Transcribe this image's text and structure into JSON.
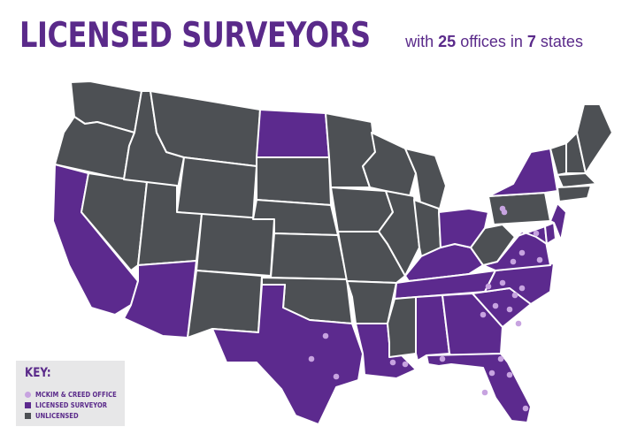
{
  "title": {
    "main": "LICENSED SURVEYORS",
    "sub_prefix": "with ",
    "office_count": "25",
    "sub_middle": " offices in ",
    "state_count": "7",
    "sub_suffix": " states"
  },
  "colors": {
    "licensed": "#5c2a8e",
    "unlicensed": "#4d5054",
    "office": "#c7a3e0",
    "border": "#ffffff",
    "key_bg": "#e7e7e8",
    "text": "#5a2a8a"
  },
  "key": {
    "title": "KEY:",
    "items": [
      {
        "label": "MCKIM & CREED OFFICE",
        "swatch": "dot"
      },
      {
        "label": "LICENSED SURVEYOR",
        "swatch": "licensed"
      },
      {
        "label": "UNLICENSED",
        "swatch": "unlicensed"
      }
    ]
  }
}
